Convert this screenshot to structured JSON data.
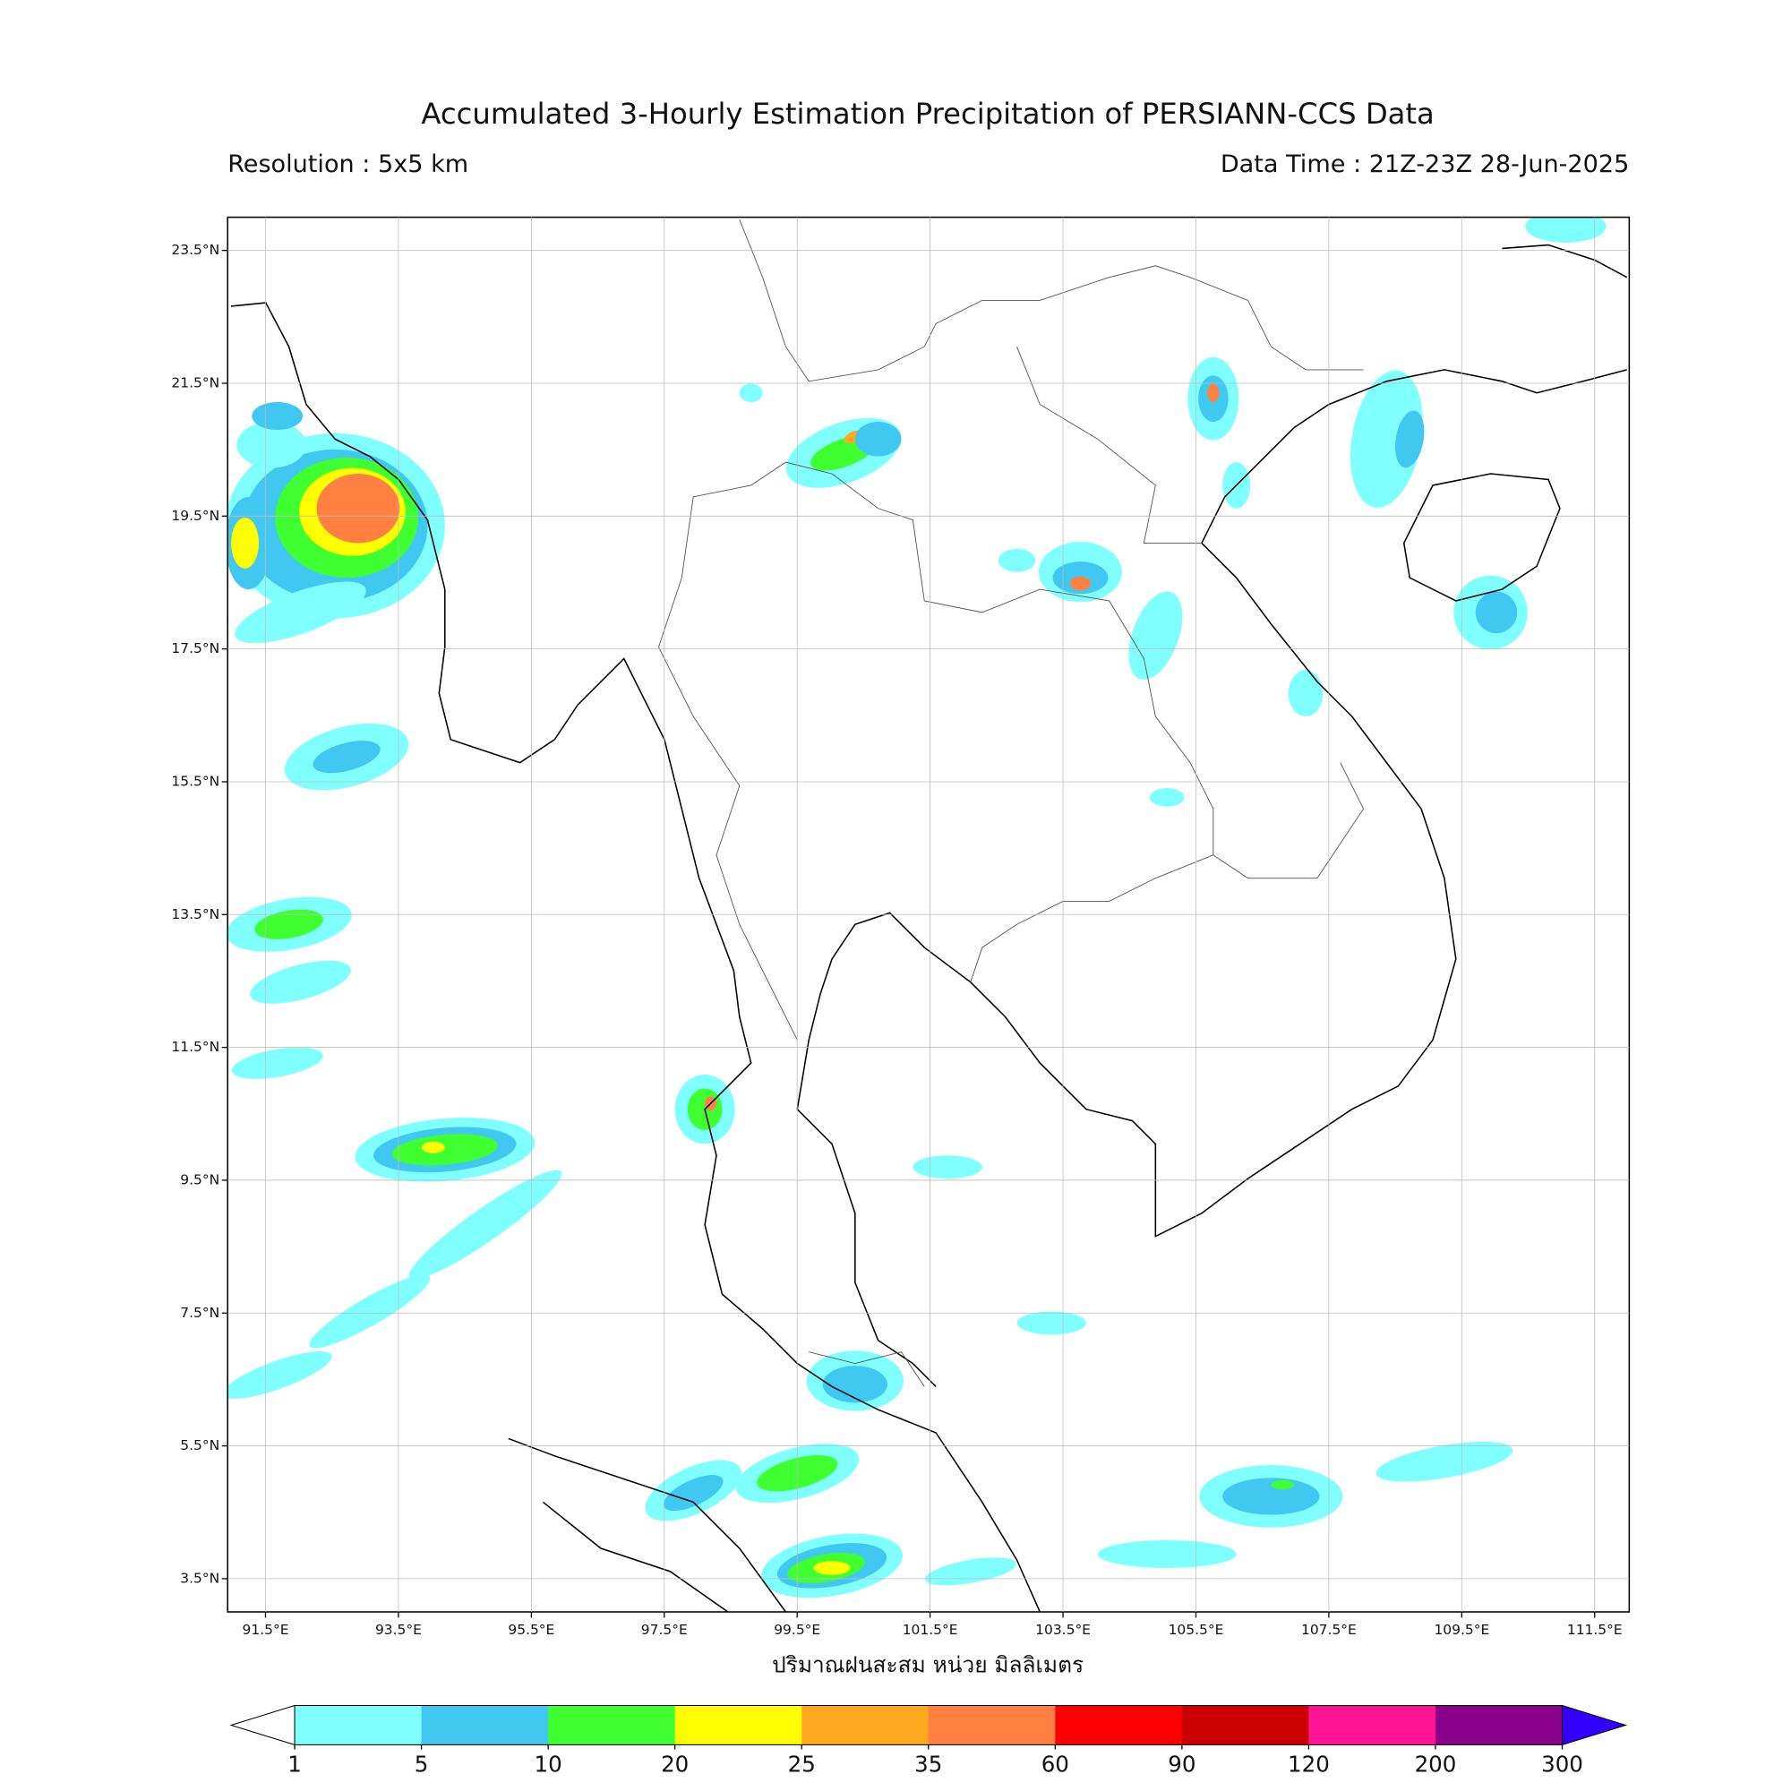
{
  "header": {
    "title": "Accumulated 3-Hourly Estimation Precipitation of PERSIANN-CCS Data",
    "resolution": "Resolution : 5x5 km",
    "data_time": "Data Time : 21Z-23Z 28-Jun-2025"
  },
  "map": {
    "xlim": [
      90.93,
      112.02
    ],
    "ylim": [
      3.0,
      24.0
    ],
    "grid": true,
    "xticks": [
      {
        "value": 91.5,
        "label": "91.5°E"
      },
      {
        "value": 93.5,
        "label": "93.5°E"
      },
      {
        "value": 95.5,
        "label": "95.5°E"
      },
      {
        "value": 97.5,
        "label": "97.5°E"
      },
      {
        "value": 99.5,
        "label": "99.5°E"
      },
      {
        "value": 101.5,
        "label": "101.5°E"
      },
      {
        "value": 103.5,
        "label": "103.5°E"
      },
      {
        "value": 105.5,
        "label": "105.5°E"
      },
      {
        "value": 107.5,
        "label": "107.5°E"
      },
      {
        "value": 109.5,
        "label": "109.5°E"
      },
      {
        "value": 111.5,
        "label": "111.5°E"
      }
    ],
    "yticks": [
      {
        "value": 23.5,
        "label": "23.5°N"
      },
      {
        "value": 21.5,
        "label": "21.5°N"
      },
      {
        "value": 19.5,
        "label": "19.5°N"
      },
      {
        "value": 17.5,
        "label": "17.5°N"
      },
      {
        "value": 15.5,
        "label": "15.5°N"
      },
      {
        "value": 13.5,
        "label": "13.5°N"
      },
      {
        "value": 11.5,
        "label": "11.5°N"
      },
      {
        "value": 9.5,
        "label": "9.5°N"
      },
      {
        "value": 7.5,
        "label": "7.5°N"
      },
      {
        "value": 5.5,
        "label": "5.5°N"
      },
      {
        "value": 3.5,
        "label": "3.5°N"
      }
    ],
    "xlabel": "ปริมาณฝนสะสม หน่วย มิลลิเมตร"
  },
  "colorbar": {
    "levels": [
      1,
      5,
      10,
      20,
      25,
      35,
      60,
      90,
      120,
      200,
      300
    ],
    "colors": [
      "#80ffff",
      "#40c8f0",
      "#40ff30",
      "#ffff00",
      "#ffa820",
      "#ff8040",
      "#ff0000",
      "#cc0000",
      "#ff1493",
      "#8b008b"
    ],
    "under_color": "#ffffff",
    "over_color": "#3300ff"
  }
}
